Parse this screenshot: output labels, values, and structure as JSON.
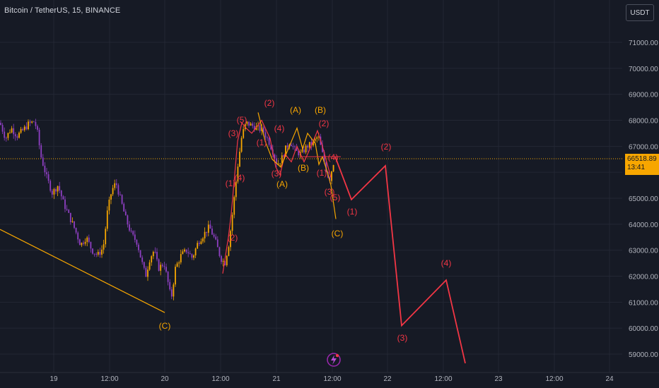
{
  "header": {
    "symbol_title": "Bitcoin / TetherUS, 15, BINANCE",
    "currency_button": "USDT"
  },
  "current_price": {
    "value": "66518.89",
    "countdown": "13:41"
  },
  "colors": {
    "background": "#161a25",
    "grid": "#232734",
    "bull_candle": "#f7a600",
    "bear_candle": "#8e3fc2",
    "wave_orange": "#f7a600",
    "wave_red": "#f23645",
    "price_line": "#f7a600"
  },
  "icons": {
    "lightning_badge": "lightning-icon"
  },
  "chart_data": {
    "type": "candlestick",
    "title": "Bitcoin / TetherUS, 15, BINANCE",
    "ylim": [
      58600,
      71800
    ],
    "y_ticks": [
      "71000.00",
      "70000.00",
      "69000.00",
      "68000.00",
      "67000.00",
      "66000.00",
      "65000.00",
      "64000.00",
      "63000.00",
      "62000.00",
      "61000.00",
      "60000.00",
      "59000.00"
    ],
    "x_ticks": [
      "19",
      "12:00",
      "20",
      "12:00",
      "21",
      "12:00",
      "22",
      "12:00",
      "23",
      "12:00",
      "24"
    ],
    "grid": true,
    "last_price": 66518.89,
    "price_path": [
      [
        0,
        67900
      ],
      [
        8,
        67300
      ],
      [
        16,
        67700
      ],
      [
        24,
        67400
      ],
      [
        32,
        67600
      ],
      [
        40,
        67850
      ],
      [
        48,
        67950
      ],
      [
        52,
        67700
      ],
      [
        58,
        66600
      ],
      [
        66,
        65800
      ],
      [
        74,
        65200
      ],
      [
        82,
        65500
      ],
      [
        90,
        64800
      ],
      [
        98,
        64300
      ],
      [
        106,
        63800
      ],
      [
        114,
        63200
      ],
      [
        122,
        63500
      ],
      [
        130,
        63000
      ],
      [
        138,
        62800
      ],
      [
        146,
        63100
      ],
      [
        152,
        64500
      ],
      [
        158,
        65300
      ],
      [
        164,
        65600
      ],
      [
        170,
        65000
      ],
      [
        178,
        64200
      ],
      [
        186,
        63600
      ],
      [
        194,
        63300
      ],
      [
        200,
        62600
      ],
      [
        206,
        62000
      ],
      [
        212,
        62700
      ],
      [
        218,
        63000
      ],
      [
        224,
        62300
      ],
      [
        232,
        62500
      ],
      [
        238,
        61700
      ],
      [
        242,
        61100
      ],
      [
        248,
        62300
      ],
      [
        256,
        62800
      ],
      [
        264,
        63000
      ],
      [
        272,
        62700
      ],
      [
        280,
        63300
      ],
      [
        288,
        63600
      ],
      [
        296,
        63900
      ],
      [
        304,
        63400
      ],
      [
        312,
        62700
      ],
      [
        318,
        62500
      ],
      [
        324,
        63300
      ],
      [
        330,
        64700
      ],
      [
        336,
        66200
      ],
      [
        342,
        67400
      ],
      [
        348,
        67900
      ],
      [
        356,
        67800
      ],
      [
        364,
        67700
      ],
      [
        372,
        67600
      ],
      [
        380,
        67200
      ],
      [
        386,
        66800
      ],
      [
        392,
        66300
      ],
      [
        398,
        66500
      ],
      [
        404,
        66900
      ],
      [
        410,
        67200
      ],
      [
        418,
        66800
      ],
      [
        426,
        66700
      ],
      [
        434,
        67000
      ],
      [
        442,
        67100
      ],
      [
        450,
        67400
      ],
      [
        456,
        66700
      ],
      [
        462,
        66000
      ],
      [
        466,
        65700
      ],
      [
        470,
        66200
      ],
      [
        474,
        66600
      ]
    ],
    "waves": {
      "orange_left": {
        "labels": [
          "(C)"
        ],
        "points": [
          [
            0,
            63800
          ],
          [
            233,
            60600
          ]
        ]
      },
      "orange_abc": {
        "labels": [
          "(A)",
          "(B)",
          "(C)",
          "(A)",
          "(B)",
          "(A)",
          "(B)",
          "(C)"
        ],
        "points": [
          [
            365,
            68300
          ],
          [
            375,
            67200
          ],
          [
            385,
            66500
          ],
          [
            397,
            66200
          ],
          [
            420,
            67700
          ],
          [
            428,
            66900
          ],
          [
            435,
            67500
          ],
          [
            446,
            67100
          ],
          [
            451,
            66300
          ],
          [
            456,
            66600
          ],
          [
            463,
            66000
          ],
          [
            468,
            65500
          ],
          [
            475,
            64200
          ]
        ]
      },
      "red_impulse_history": {
        "labels": [
          "(2)",
          "(1)",
          "(3)",
          "(4)",
          "(5)",
          "(1)",
          "(2)",
          "(2)",
          "(3)",
          "(4)",
          "(1)",
          "(2)",
          "(3)",
          "(4)",
          "(5)"
        ],
        "points": [
          [
            315,
            62100
          ],
          [
            323,
            63500
          ],
          [
            327,
            64400
          ],
          [
            331,
            65600
          ],
          [
            336,
            67200
          ],
          [
            342,
            67900
          ],
          [
            348,
            67700
          ],
          [
            356,
            67500
          ],
          [
            370,
            68000
          ],
          [
            382,
            67300
          ],
          [
            390,
            66200
          ],
          [
            396,
            65900
          ],
          [
            403,
            66700
          ],
          [
            412,
            66400
          ],
          [
            420,
            67000
          ],
          [
            430,
            66400
          ],
          [
            440,
            67000
          ],
          [
            449,
            67600
          ],
          [
            455,
            67100
          ],
          [
            460,
            66600
          ],
          [
            464,
            66200
          ],
          [
            468,
            65800
          ]
        ]
      },
      "red_projection": {
        "labels": [
          "(1)",
          "(2)",
          "(3)",
          "(4)",
          "(5)"
        ],
        "points": [
          [
            474,
            66600
          ],
          [
            497,
            64950
          ],
          [
            545,
            66250
          ],
          [
            568,
            60100
          ],
          [
            631,
            61850
          ],
          [
            658,
            58650
          ]
        ]
      },
      "label_positions_note": "labels rendered near wave turning points"
    }
  },
  "wave_labels": [
    {
      "text": "(C)",
      "x": 233,
      "y": 466,
      "c": "orange"
    },
    {
      "text": "(2)",
      "x": 381,
      "y": 150,
      "c": "red"
    },
    {
      "text": "(5)",
      "x": 342,
      "y": 174,
      "c": "red"
    },
    {
      "text": "(3)",
      "x": 330,
      "y": 193,
      "c": "red"
    },
    {
      "text": "(4)",
      "x": 395,
      "y": 186,
      "c": "red"
    },
    {
      "text": "(1)",
      "x": 370,
      "y": 206,
      "c": "red"
    },
    {
      "text": "(1)",
      "x": 326,
      "y": 264,
      "c": "red"
    },
    {
      "text": "(4)",
      "x": 339,
      "y": 256,
      "c": "red"
    },
    {
      "text": "(2)",
      "x": 329,
      "y": 341,
      "c": "red"
    },
    {
      "text": "(3)",
      "x": 391,
      "y": 250,
      "c": "red"
    },
    {
      "text": "(A)",
      "x": 399,
      "y": 265,
      "c": "orange"
    },
    {
      "text": "(A)",
      "x": 418,
      "y": 160,
      "c": "orange"
    },
    {
      "text": "(B)",
      "x": 429,
      "y": 242,
      "c": "orange"
    },
    {
      "text": "(B)",
      "x": 453,
      "y": 160,
      "c": "orange"
    },
    {
      "text": "(2)",
      "x": 458,
      "y": 179,
      "c": "red"
    },
    {
      "text": "(1)",
      "x": 455,
      "y": 249,
      "c": "red"
    },
    {
      "text": "(4)",
      "x": 471,
      "y": 227,
      "c": "red"
    },
    {
      "text": "(3)",
      "x": 466,
      "y": 276,
      "c": "red"
    },
    {
      "text": "(5)",
      "x": 474,
      "y": 284,
      "c": "red"
    },
    {
      "text": "(C)",
      "x": 477,
      "y": 335,
      "c": "orange"
    },
    {
      "text": "(1)",
      "x": 498,
      "y": 304,
      "c": "red"
    },
    {
      "text": "(2)",
      "x": 546,
      "y": 212,
      "c": "red"
    },
    {
      "text": "(3)",
      "x": 569,
      "y": 483,
      "c": "red"
    },
    {
      "text": "(4)",
      "x": 631,
      "y": 377,
      "c": "red"
    }
  ]
}
